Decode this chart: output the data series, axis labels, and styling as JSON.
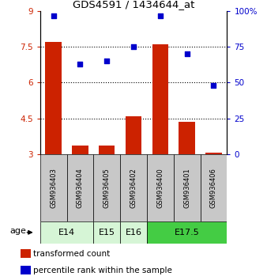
{
  "title": "GDS4591 / 1434644_at",
  "samples": [
    "GSM936403",
    "GSM936404",
    "GSM936405",
    "GSM936402",
    "GSM936400",
    "GSM936401",
    "GSM936406"
  ],
  "bar_values": [
    7.7,
    3.35,
    3.35,
    4.6,
    7.6,
    4.35,
    3.05
  ],
  "dot_values": [
    97,
    63,
    65,
    75,
    97,
    70,
    48
  ],
  "bar_color": "#cc2200",
  "dot_color": "#0000cc",
  "bar_bottom": 3.0,
  "ylim_left": [
    3.0,
    9.0
  ],
  "ylim_right": [
    0,
    100
  ],
  "yticks_left": [
    3.0,
    4.5,
    6.0,
    7.5,
    9.0
  ],
  "ytick_labels_left": [
    "3",
    "4.5",
    "6",
    "7.5",
    "9"
  ],
  "yticks_right": [
    0,
    25,
    50,
    75,
    100
  ],
  "ytick_labels_right": [
    "0",
    "25",
    "50",
    "75",
    "100%"
  ],
  "hlines": [
    4.5,
    6.0,
    7.5
  ],
  "age_groups": [
    {
      "label": "E14",
      "cols": [
        0,
        1
      ],
      "color": "#d6f5d6"
    },
    {
      "label": "E15",
      "cols": [
        2
      ],
      "color": "#d6f5d6"
    },
    {
      "label": "E16",
      "cols": [
        3
      ],
      "color": "#d6f5d6"
    },
    {
      "label": "E17.5",
      "cols": [
        4,
        5,
        6
      ],
      "color": "#44cc44"
    }
  ],
  "gsm_bg": "#c8c8c8",
  "legend_bar_label": "transformed count",
  "legend_dot_label": "percentile rank within the sample",
  "age_label": "age"
}
